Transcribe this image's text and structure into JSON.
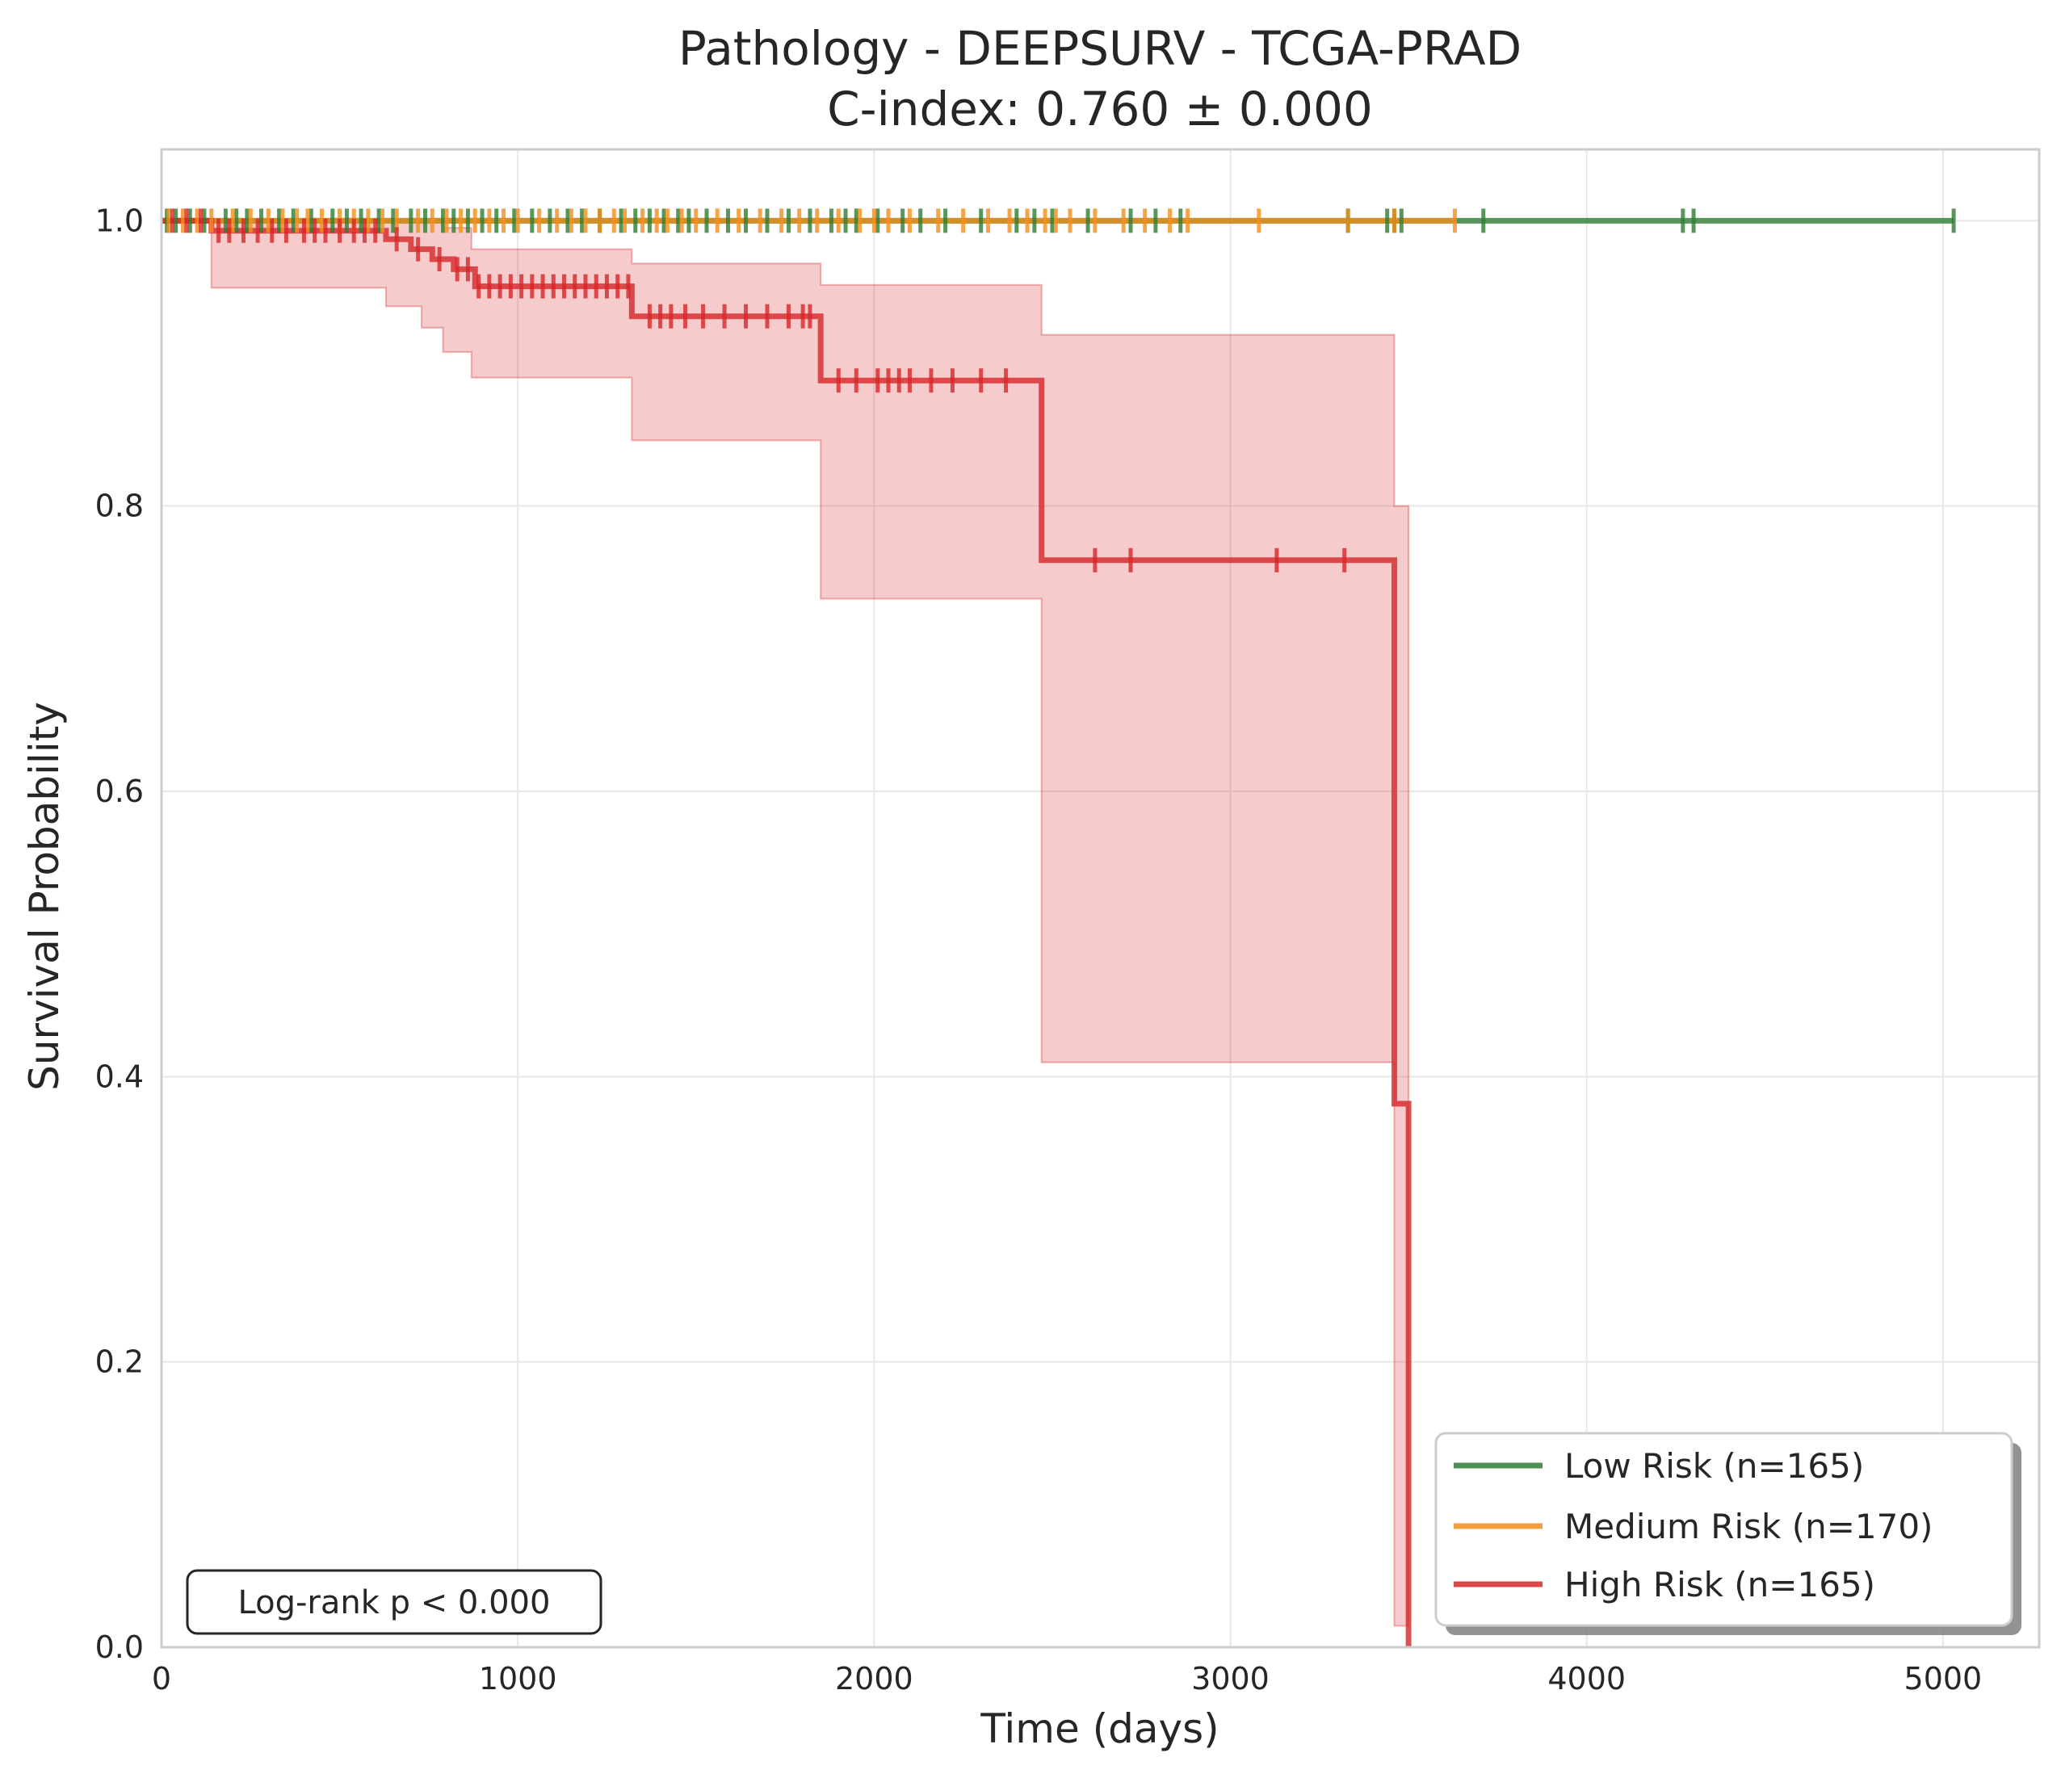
{
  "chart_data": {
    "type": "line",
    "subtype": "kaplan-meier",
    "title": "Pathology - DEEPSURV - TCGA-PRAD",
    "subtitle": "C-index: 0.760 ± 0.000",
    "xlabel": "Time (days)",
    "ylabel": "Survival Probability",
    "xlim": [
      0,
      5270
    ],
    "ylim": [
      0,
      1.05
    ],
    "xticks": [
      0,
      1000,
      2000,
      3000,
      4000,
      5000
    ],
    "yticks": [
      0.0,
      0.2,
      0.4,
      0.6,
      0.8,
      1.0
    ],
    "xtick_labels": [
      "0",
      "1000",
      "2000",
      "3000",
      "4000",
      "5000"
    ],
    "ytick_labels": [
      "0.0",
      "0.2",
      "0.4",
      "0.6",
      "0.8",
      "1.0"
    ],
    "grid": true,
    "legend_position": "bottom-right",
    "annotation": "Log-rank p < 0.000",
    "series": [
      {
        "name": "Low Risk (n=165)",
        "color": "#2e7d32",
        "steps": [
          [
            0,
            1.0
          ],
          [
            5030,
            1.0
          ]
        ],
        "censor_times": [
          15,
          40,
          80,
          120,
          180,
          210,
          240,
          280,
          330,
          370,
          420,
          480,
          520,
          560,
          610,
          650,
          700,
          740,
          790,
          820,
          860,
          900,
          940,
          990,
          1040,
          1090,
          1140,
          1180,
          1230,
          1290,
          1330,
          1370,
          1410,
          1450,
          1480,
          1530,
          1590,
          1640,
          1700,
          1760,
          1820,
          1880,
          1920,
          1950,
          2010,
          2080,
          2130,
          2200,
          2300,
          2400,
          2450,
          2500,
          2600,
          2720,
          2790,
          2860,
          3330,
          3440,
          3460,
          3480,
          3710,
          4270,
          4300,
          5030
        ]
      },
      {
        "name": "Medium Risk (n=170)",
        "color": "#f28e1c",
        "steps": [
          [
            0,
            1.0
          ],
          [
            3630,
            1.0
          ]
        ],
        "censor_times": [
          20,
          60,
          100,
          140,
          200,
          250,
          300,
          340,
          380,
          410,
          450,
          500,
          540,
          580,
          620,
          660,
          720,
          760,
          800,
          840,
          880,
          920,
          960,
          1000,
          1060,
          1110,
          1150,
          1190,
          1230,
          1270,
          1300,
          1350,
          1390,
          1420,
          1460,
          1500,
          1560,
          1620,
          1680,
          1740,
          1790,
          1840,
          1900,
          1960,
          2000,
          2040,
          2100,
          2180,
          2250,
          2320,
          2380,
          2430,
          2480,
          2510,
          2550,
          2620,
          2700,
          2760,
          2830,
          2880,
          3080,
          3330,
          3460,
          3630
        ]
      },
      {
        "name": "High Risk (n=165)",
        "color": "#d62728",
        "steps": [
          [
            0,
            1.0
          ],
          [
            140,
            0.993
          ],
          [
            630,
            0.987
          ],
          [
            700,
            0.98
          ],
          [
            760,
            0.973
          ],
          [
            820,
            0.966
          ],
          [
            880,
            0.954
          ],
          [
            1320,
            0.933
          ],
          [
            1850,
            0.888
          ],
          [
            2470,
            0.762
          ],
          [
            3460,
            0.381
          ],
          [
            3500,
            0.0
          ]
        ],
        "ci_lower": [
          [
            0,
            1.0
          ],
          [
            140,
            0.953
          ],
          [
            630,
            0.94
          ],
          [
            730,
            0.925
          ],
          [
            790,
            0.908
          ],
          [
            870,
            0.89
          ],
          [
            1320,
            0.846
          ],
          [
            1850,
            0.735
          ],
          [
            2470,
            0.41
          ],
          [
            3460,
            0.015
          ],
          [
            3500,
            0.015
          ]
        ],
        "ci_upper": [
          [
            0,
            1.0
          ],
          [
            630,
            1.0
          ],
          [
            790,
            0.995
          ],
          [
            870,
            0.98
          ],
          [
            1320,
            0.97
          ],
          [
            1850,
            0.955
          ],
          [
            2470,
            0.92
          ],
          [
            3460,
            0.8
          ],
          [
            3500,
            0.8
          ]
        ],
        "censor_times": [
          30,
          70,
          110,
          160,
          190,
          230,
          270,
          310,
          350,
          400,
          430,
          460,
          500,
          540,
          570,
          600,
          660,
          720,
          780,
          830,
          860,
          890,
          920,
          950,
          980,
          1010,
          1040,
          1070,
          1100,
          1130,
          1160,
          1190,
          1220,
          1250,
          1280,
          1310,
          1370,
          1400,
          1430,
          1470,
          1520,
          1580,
          1640,
          1700,
          1760,
          1800,
          1820,
          1900,
          1950,
          2010,
          2040,
          2070,
          2100,
          2160,
          2220,
          2300,
          2370,
          2620,
          2720,
          3130,
          3320
        ]
      }
    ]
  }
}
